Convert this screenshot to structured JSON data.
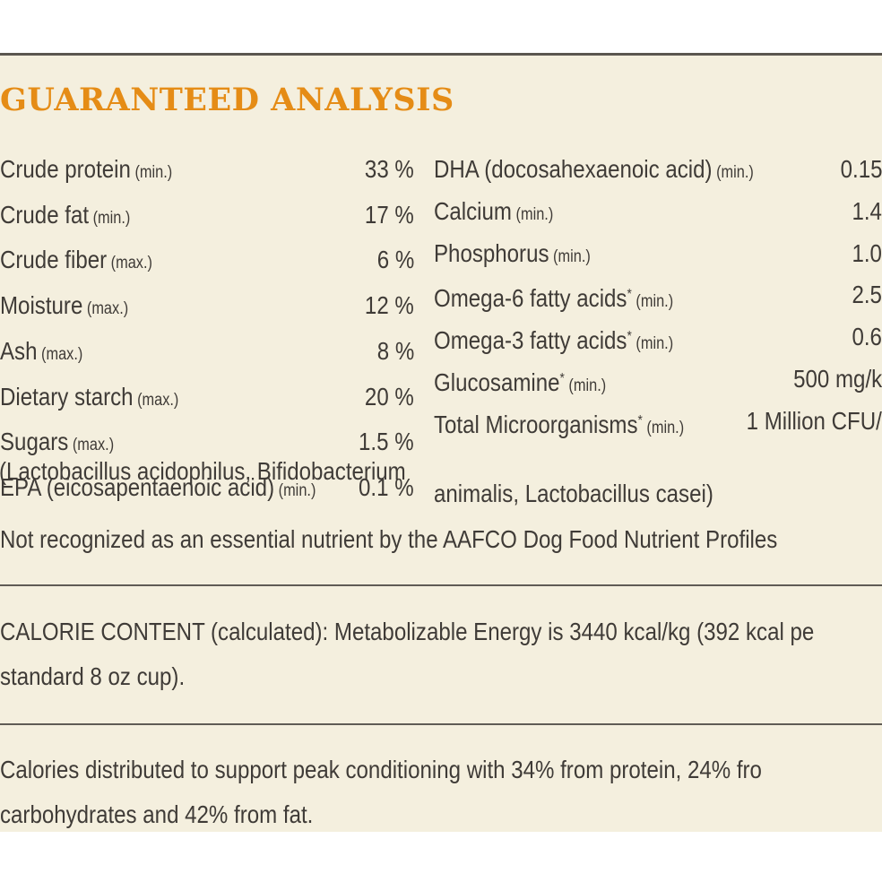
{
  "title": "GUARANTEED ANALYSIS",
  "left_rows": [
    {
      "name": "Crude protein",
      "qual": "(min.)",
      "value": "33 %"
    },
    {
      "name": "Crude fat",
      "qual": "(min.)",
      "value": "17 %"
    },
    {
      "name": "Crude fiber",
      "qual": "(max.)",
      "value": "6 %"
    },
    {
      "name": "Moisture",
      "qual": "(max.)",
      "value": "12 %"
    },
    {
      "name": "Ash",
      "qual": "(max.)",
      "value": "8 %"
    },
    {
      "name": "Dietary starch",
      "qual": "(max.)",
      "value": "20 %"
    },
    {
      "name": "Sugars",
      "qual": "(max.)",
      "value": "1.5 %"
    },
    {
      "name": "EPA (eicosapentaenoic acid)",
      "qual": "(min.)",
      "value": "0.1 %"
    }
  ],
  "right_rows": [
    {
      "name": "DHA (docosahexaenoic acid)",
      "qual": "(min.)",
      "value": "0.15"
    },
    {
      "name": "Calcium",
      "qual": "(min.)",
      "value": "1.4"
    },
    {
      "name": "Phosphorus",
      "qual": "(min.)",
      "value": "1.0"
    },
    {
      "name": "Omega-6 fatty acids",
      "star": "*",
      "qual": "(min.)",
      "value": "2.5"
    },
    {
      "name": "Omega-3 fatty acids",
      "star": "*",
      "qual": "(min.)",
      "value": "0.6"
    },
    {
      "name": "Glucosamine",
      "star": "*",
      "qual": "(min.)",
      "value": "500 mg/k"
    },
    {
      "name": "Total Microorganisms",
      "star": "*",
      "qual": "(min.)",
      "value": "1 Million CFU/"
    }
  ],
  "microorganism_note_line1": "(Lactobacillus acidophilus, Bifidobacterium",
  "microorganism_note_line2": "animalis, Lactobacillus casei)",
  "footnote": "Not recognized as an essential nutrient by the AAFCO Dog Food Nutrient Profiles",
  "calorie_line1": "CALORIE CONTENT (calculated): Metabolizable Energy is 3440 kcal/kg (392 kcal pe",
  "calorie_line2": "standard 8 oz cup).",
  "distribution_line1": "Calories distributed to support peak conditioning with 34% from protein, 24% fro",
  "distribution_line2": "carbohydrates and 42% from fat."
}
